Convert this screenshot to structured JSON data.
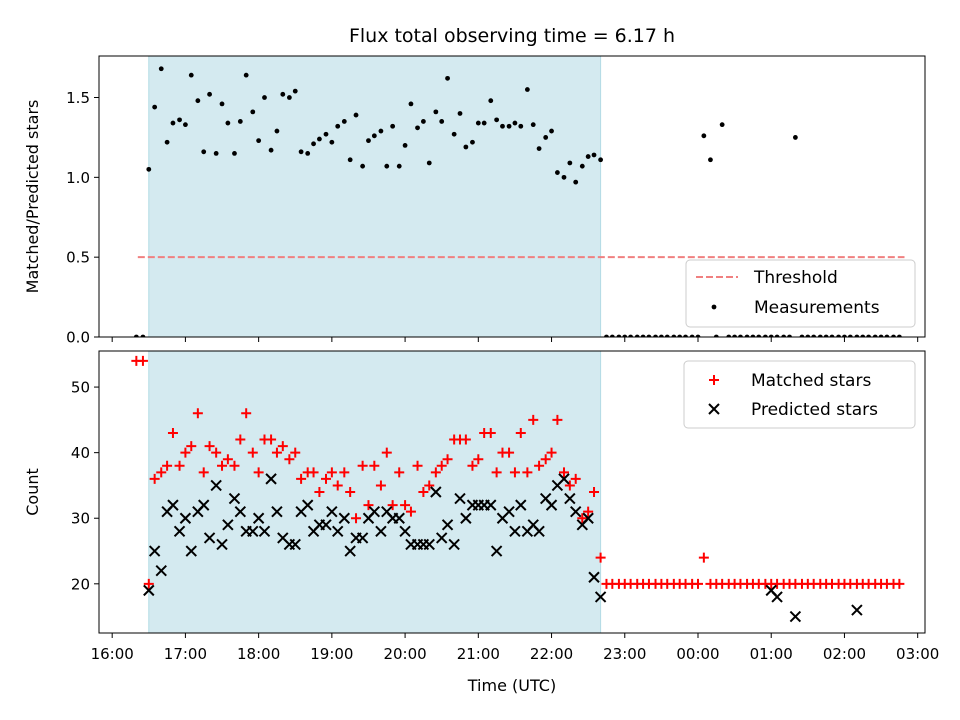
{
  "chart_data": [
    {
      "type": "scatter",
      "title": "Flux total observing time = 6.17 h",
      "xlabel": "",
      "ylabel": "Matched/Predicted stars",
      "x_unit": "hours since 16:00 UTC",
      "xlim": [
        -0.18,
        11.1
      ],
      "ylim": [
        0.0,
        1.76
      ],
      "yticks": [
        0.0,
        0.5,
        1.0,
        1.5
      ],
      "ytick_labels": [
        "0.0",
        "0.5",
        "1.0",
        "1.5"
      ],
      "xticks": [
        0,
        1,
        2,
        3,
        4,
        5,
        6,
        7,
        8,
        9,
        10,
        11
      ],
      "shaded_region": [
        0.5,
        6.67
      ],
      "colors": {
        "shade": "#d4eaf0",
        "shade_edge": "#b2dbe5",
        "threshold": "#f08080",
        "points": "#000000"
      },
      "legend": {
        "location": "lower-right",
        "entries": [
          "Threshold",
          "Measurements"
        ]
      },
      "series": [
        {
          "name": "Threshold",
          "kind": "dashed-line",
          "x": [
            0.35,
            10.82
          ],
          "y": [
            0.5,
            0.5
          ]
        },
        {
          "name": "Measurements",
          "kind": "points",
          "x": [
            0.33,
            0.42,
            0.5,
            0.58,
            0.67,
            0.75,
            0.83,
            0.92,
            1.0,
            1.08,
            1.17,
            1.25,
            1.33,
            1.42,
            1.5,
            1.58,
            1.67,
            1.75,
            1.83,
            1.92,
            2.0,
            2.08,
            2.17,
            2.25,
            2.33,
            2.42,
            2.5,
            2.58,
            2.67,
            2.75,
            2.83,
            2.92,
            3.0,
            3.08,
            3.17,
            3.25,
            3.33,
            3.42,
            3.5,
            3.58,
            3.67,
            3.75,
            3.83,
            3.92,
            4.0,
            4.08,
            4.17,
            4.25,
            4.33,
            4.42,
            4.5,
            4.58,
            4.67,
            4.75,
            4.83,
            4.92,
            5.0,
            5.08,
            5.17,
            5.25,
            5.33,
            5.42,
            5.5,
            5.58,
            5.67,
            5.75,
            5.83,
            5.92,
            6.0,
            6.08,
            6.17,
            6.25,
            6.33,
            6.42,
            6.5,
            6.58,
            6.67,
            6.75,
            6.83,
            6.92,
            7.0,
            7.08,
            7.17,
            7.25,
            7.33,
            7.42,
            7.5,
            7.58,
            7.67,
            7.75,
            7.83,
            7.92,
            8.0,
            8.08,
            8.17,
            8.25,
            8.33,
            8.42,
            8.5,
            8.58,
            8.67,
            8.75,
            8.83,
            8.92,
            9.0,
            9.08,
            9.17,
            9.25,
            9.33,
            9.42,
            9.5,
            9.58,
            9.67,
            9.75,
            9.83,
            9.92,
            10.0,
            10.08,
            10.17,
            10.25,
            10.33,
            10.42,
            10.5,
            10.58,
            10.67,
            10.75
          ],
          "y": [
            0.0,
            0.0,
            1.05,
            1.44,
            1.68,
            1.22,
            1.34,
            1.36,
            1.33,
            1.64,
            1.48,
            1.16,
            1.52,
            1.15,
            1.46,
            1.34,
            1.15,
            1.35,
            1.64,
            1.41,
            1.23,
            1.5,
            1.17,
            1.29,
            1.52,
            1.5,
            1.54,
            1.16,
            1.15,
            1.21,
            1.24,
            1.27,
            1.22,
            1.32,
            1.35,
            1.11,
            1.39,
            1.07,
            1.23,
            1.26,
            1.29,
            1.07,
            1.32,
            1.07,
            1.2,
            1.46,
            1.31,
            1.35,
            1.09,
            1.41,
            1.35,
            1.62,
            1.27,
            1.4,
            1.19,
            1.22,
            1.34,
            1.34,
            1.48,
            1.36,
            1.32,
            1.32,
            1.34,
            1.32,
            1.55,
            1.33,
            1.18,
            1.25,
            1.29,
            1.03,
            1.0,
            1.09,
            0.97,
            1.07,
            1.13,
            1.14,
            1.11,
            0.0,
            0.0,
            0.0,
            0.0,
            0.0,
            0.0,
            0.0,
            0.0,
            0.0,
            0.0,
            0.0,
            0.0,
            0.0,
            0.0,
            0.0,
            0.0,
            1.26,
            1.11,
            0.0,
            1.33,
            0.0,
            0.0,
            0.0,
            0.0,
            0.0,
            0.0,
            0.0,
            0.0,
            0.0,
            0.0,
            0.0,
            1.25,
            0.0,
            0.0,
            0.0,
            0.0,
            0.0,
            0.0,
            0.0,
            0.0,
            0.0,
            0.0,
            0.0,
            0.0,
            0.0,
            0.0,
            0.0,
            0.0,
            0.0
          ]
        }
      ]
    },
    {
      "type": "scatter",
      "title": "",
      "xlabel": "Time (UTC)",
      "ylabel": "Count",
      "x_unit": "hours since 16:00 UTC",
      "xlim": [
        -0.18,
        11.1
      ],
      "ylim": [
        12.5,
        55.5
      ],
      "yticks": [
        20,
        30,
        40,
        50
      ],
      "ytick_labels": [
        "20",
        "30",
        "40",
        "50"
      ],
      "xticks": [
        0,
        1,
        2,
        3,
        4,
        5,
        6,
        7,
        8,
        9,
        10,
        11
      ],
      "xtick_labels": [
        "16:00",
        "17:00",
        "18:00",
        "19:00",
        "20:00",
        "21:00",
        "22:00",
        "23:00",
        "00:00",
        "01:00",
        "02:00",
        "03:00"
      ],
      "shaded_region": [
        0.5,
        6.67
      ],
      "colors": {
        "shade": "#d4eaf0",
        "matched": "#ff0000",
        "predicted": "#000000"
      },
      "legend": {
        "location": "top-right",
        "entries": [
          "Matched stars",
          "Predicted stars"
        ]
      },
      "series": [
        {
          "name": "Matched stars",
          "marker": "+",
          "x": [
            0.33,
            0.42,
            0.5,
            0.58,
            0.67,
            0.75,
            0.83,
            0.92,
            1.0,
            1.08,
            1.17,
            1.25,
            1.33,
            1.42,
            1.5,
            1.58,
            1.67,
            1.75,
            1.83,
            1.92,
            2.0,
            2.08,
            2.17,
            2.25,
            2.33,
            2.42,
            2.5,
            2.58,
            2.67,
            2.75,
            2.83,
            2.92,
            3.0,
            3.08,
            3.17,
            3.25,
            3.33,
            3.42,
            3.5,
            3.58,
            3.67,
            3.75,
            3.83,
            3.92,
            4.0,
            4.08,
            4.17,
            4.25,
            4.33,
            4.42,
            4.5,
            4.58,
            4.67,
            4.75,
            4.83,
            4.92,
            5.0,
            5.08,
            5.17,
            5.25,
            5.33,
            5.42,
            5.5,
            5.58,
            5.67,
            5.75,
            5.83,
            5.92,
            6.0,
            6.08,
            6.17,
            6.25,
            6.33,
            6.42,
            6.5,
            6.58,
            6.67,
            6.75,
            6.83,
            6.92,
            7.0,
            7.08,
            7.17,
            7.25,
            7.33,
            7.42,
            7.5,
            7.58,
            7.67,
            7.75,
            7.83,
            7.92,
            8.0,
            8.08,
            8.17,
            8.25,
            8.33,
            8.42,
            8.5,
            8.58,
            8.67,
            8.75,
            8.83,
            8.92,
            9.0,
            9.08,
            9.17,
            9.25,
            9.33,
            9.42,
            9.5,
            9.58,
            9.67,
            9.75,
            9.83,
            9.92,
            10.0,
            10.08,
            10.17,
            10.25,
            10.33,
            10.42,
            10.5,
            10.58,
            10.67,
            10.75
          ],
          "y": [
            54,
            54,
            20,
            36,
            37,
            38,
            43,
            38,
            40,
            41,
            46,
            37,
            41,
            40,
            38,
            39,
            38,
            42,
            46,
            40,
            37,
            42,
            42,
            40,
            41,
            39,
            40,
            36,
            37,
            37,
            34,
            36,
            37,
            35,
            37,
            34,
            30,
            38,
            32,
            38,
            35,
            40,
            32,
            37,
            32,
            31,
            38,
            34,
            35,
            37,
            38,
            39,
            42,
            42,
            42,
            38,
            39,
            43,
            43,
            37,
            40,
            40,
            37,
            43,
            37,
            45,
            38,
            39,
            40,
            45,
            37,
            35,
            36,
            30,
            31,
            34,
            24,
            20,
            20,
            20,
            20,
            20,
            20,
            20,
            20,
            20,
            20,
            20,
            20,
            20,
            20,
            20,
            20,
            24,
            20,
            20,
            20,
            20,
            20,
            20,
            20,
            20,
            20,
            20,
            20,
            20,
            20,
            20,
            20,
            20,
            20,
            20,
            20,
            20,
            20,
            20,
            20,
            20,
            20,
            20,
            20,
            20,
            20,
            20,
            20,
            20
          ]
        },
        {
          "name": "Predicted stars",
          "marker": "x",
          "x": [
            0.5,
            0.58,
            0.67,
            0.75,
            0.83,
            0.92,
            1.0,
            1.08,
            1.17,
            1.25,
            1.33,
            1.42,
            1.5,
            1.58,
            1.67,
            1.75,
            1.83,
            1.92,
            2.0,
            2.08,
            2.17,
            2.25,
            2.33,
            2.42,
            2.5,
            2.58,
            2.67,
            2.75,
            2.83,
            2.92,
            3.0,
            3.08,
            3.17,
            3.25,
            3.33,
            3.42,
            3.5,
            3.58,
            3.67,
            3.75,
            3.83,
            3.92,
            4.0,
            4.08,
            4.17,
            4.25,
            4.33,
            4.42,
            4.5,
            4.58,
            4.67,
            4.75,
            4.83,
            4.92,
            5.0,
            5.08,
            5.17,
            5.25,
            5.33,
            5.42,
            5.5,
            5.58,
            5.67,
            5.75,
            5.83,
            5.92,
            6.0,
            6.08,
            6.17,
            6.25,
            6.33,
            6.42,
            6.5,
            6.58,
            6.67,
            9.0,
            9.08,
            9.33,
            10.17
          ],
          "y": [
            19,
            25,
            22,
            31,
            32,
            28,
            30,
            25,
            31,
            32,
            27,
            35,
            26,
            29,
            33,
            31,
            28,
            28,
            30,
            28,
            36,
            31,
            27,
            26,
            26,
            31,
            32,
            28,
            29,
            29,
            31,
            28,
            30,
            25,
            27,
            27,
            30,
            31,
            28,
            31,
            30,
            30,
            28,
            26,
            26,
            26,
            26,
            34,
            27,
            29,
            26,
            33,
            30,
            32,
            32,
            32,
            32,
            25,
            30,
            31,
            28,
            32,
            28,
            29,
            28,
            33,
            32,
            35,
            36,
            33,
            31,
            29,
            30,
            21,
            18,
            19,
            18,
            15,
            16
          ]
        }
      ]
    }
  ]
}
